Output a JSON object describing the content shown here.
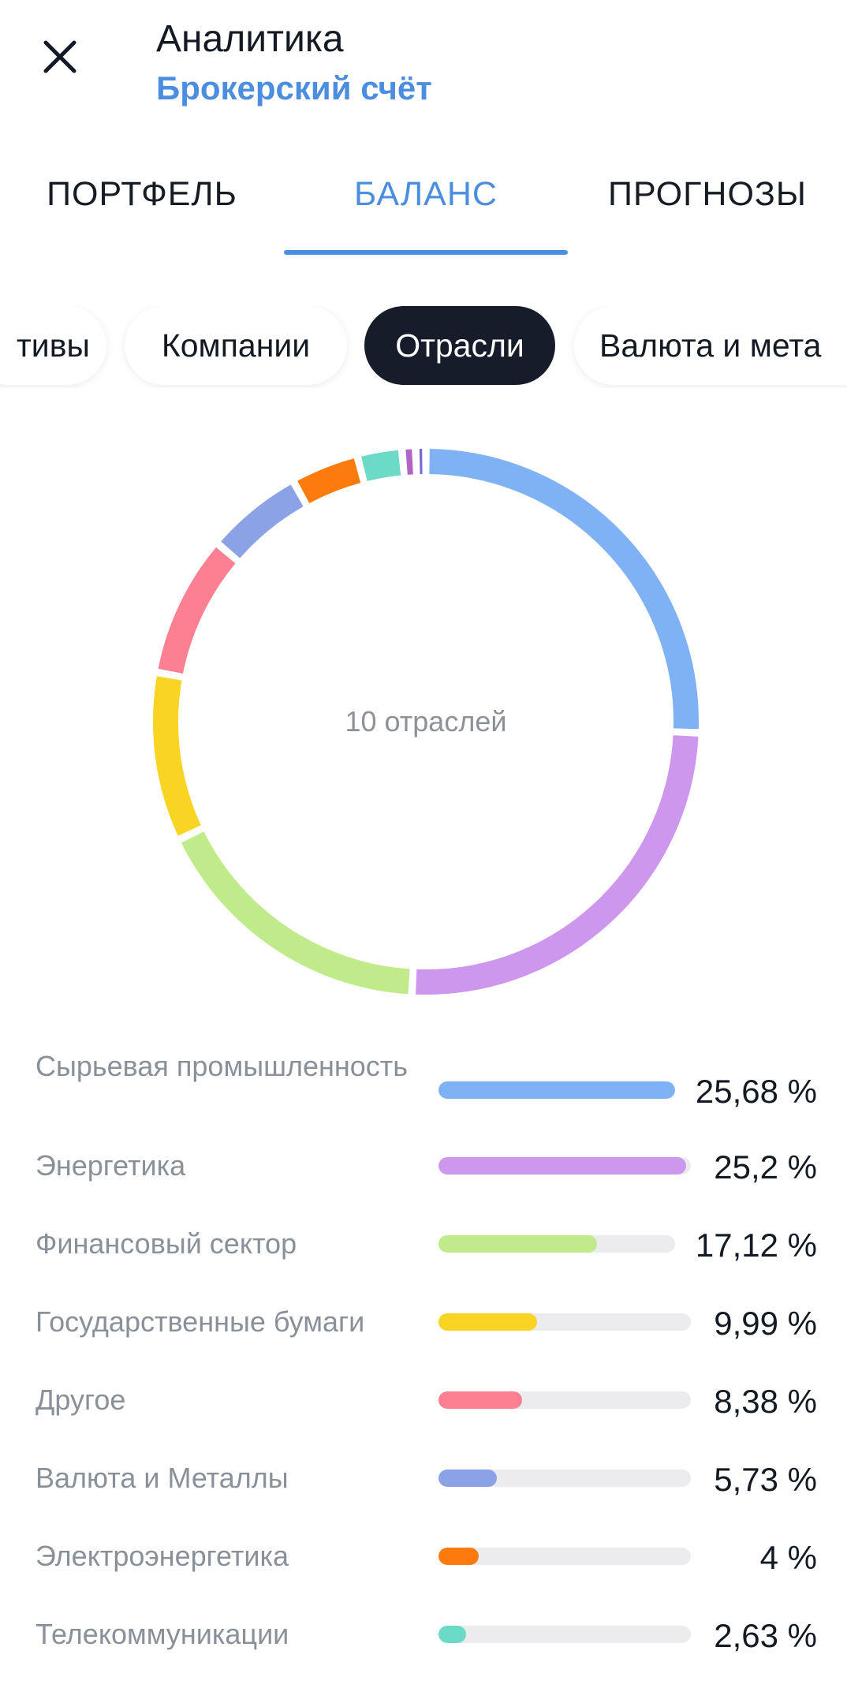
{
  "header": {
    "title": "Аналитика",
    "subtitle": "Брокерский счёт",
    "close_icon": "close-icon"
  },
  "tabs": [
    {
      "label": "ПОРТФЕЛЬ",
      "active": false
    },
    {
      "label": "БАЛАНС",
      "active": true
    },
    {
      "label": "ПРОГНОЗЫ",
      "active": false
    }
  ],
  "filter_chips": [
    {
      "label": "Активы",
      "visible_text": "тивы",
      "active": false
    },
    {
      "label": "Компании",
      "active": false
    },
    {
      "label": "Отрасли",
      "active": true
    },
    {
      "label": "Валюта и металлы",
      "visible_text": "Валюта и мета",
      "active": false
    }
  ],
  "chart_data": {
    "type": "pie",
    "center_label": "10 отраслей",
    "slices": [
      {
        "name": "Сырьевая промышленность",
        "value": 25.68,
        "color": "#7fb1f5"
      },
      {
        "name": "Энергетика",
        "value": 25.2,
        "color": "#cd97ee"
      },
      {
        "name": "Финансовый сектор",
        "value": 17.12,
        "color": "#bfeb8a"
      },
      {
        "name": "Государственные бумаги",
        "value": 9.99,
        "color": "#fad423"
      },
      {
        "name": "Другое",
        "value": 8.38,
        "color": "#fd8092"
      },
      {
        "name": "Валюта и Металлы",
        "value": 5.73,
        "color": "#8ba3e6"
      },
      {
        "name": "Электроэнергетика",
        "value": 4,
        "color": "#fd7b0c"
      },
      {
        "name": "Телекоммуникации",
        "value": 2.63,
        "color": "#6bdac7"
      },
      {
        "name": "",
        "value": 0.8,
        "color": "#b263c8"
      },
      {
        "name": "",
        "value": 0.6,
        "color": "#7b68d4"
      }
    ]
  },
  "legend": [
    {
      "label": "Сырьевая промышленность",
      "value_text": "25,68 %"
    },
    {
      "label": "Энергетика",
      "value_text": "25,2 %"
    },
    {
      "label": "Финансовый сектор",
      "value_text": "17,12 %"
    },
    {
      "label": "Государственные бумаги",
      "value_text": "9,99 %"
    },
    {
      "label": "Другое",
      "value_text": "8,38 %"
    },
    {
      "label": "Валюта и Металлы",
      "value_text": "5,73 %"
    },
    {
      "label": "Электроэнергетика",
      "value_text": "4 %"
    },
    {
      "label": "Телекоммуникации",
      "value_text": "2,63 %"
    }
  ]
}
